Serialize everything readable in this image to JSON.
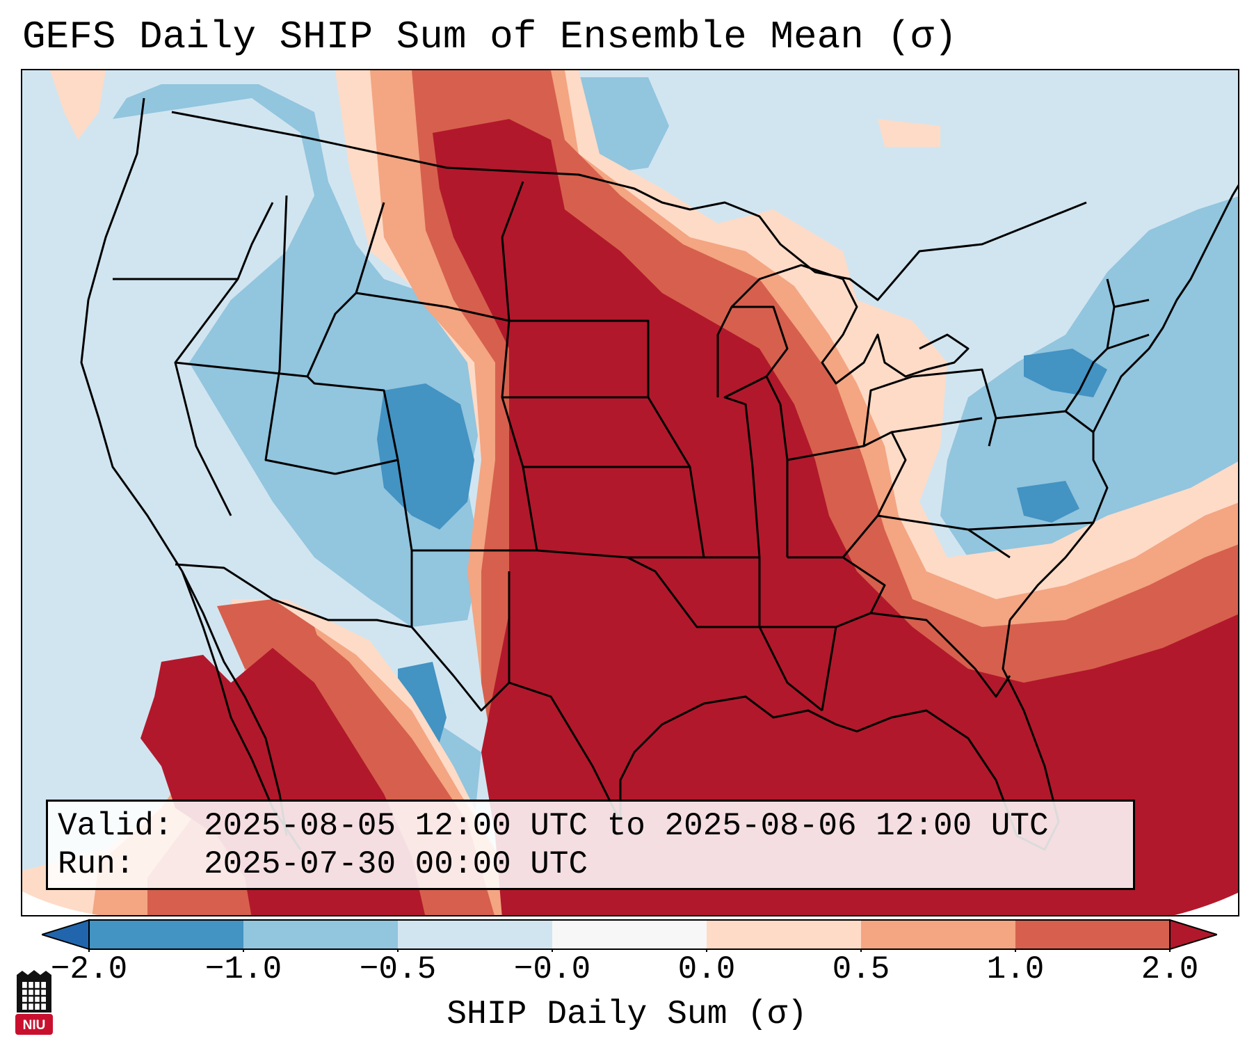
{
  "title": "GEFS Daily SHIP Sum of Ensemble Mean (σ)",
  "info": {
    "valid_label": "Valid:",
    "valid_value": "2025-08-05 12:00 UTC to 2025-08-06 12:00 UTC",
    "run_label": "Run:",
    "run_value": "2025-07-30 00:00 UTC"
  },
  "colorbar": {
    "title": "SHIP Daily Sum (σ)",
    "tick_labels": [
      "−2.0",
      "−1.0",
      "−0.5",
      "−0.0",
      "0.0",
      "0.5",
      "1.0",
      "2.0"
    ],
    "bins": [
      {
        "range": "below -2.0",
        "color": "#2166ac"
      },
      {
        "range": "-2.0 to -1.0",
        "color": "#4393c3"
      },
      {
        "range": "-1.0 to -0.5",
        "color": "#92c5de"
      },
      {
        "range": "-0.5 to -0.0",
        "color": "#d1e5f0"
      },
      {
        "range": "-0.0 to 0.0",
        "color": "#f7f7f7"
      },
      {
        "range": "0.0 to 0.5",
        "color": "#fddbc7"
      },
      {
        "range": "0.5 to 1.0",
        "color": "#f4a582"
      },
      {
        "range": "1.0 to 2.0",
        "color": "#d6604d"
      },
      {
        "range": "above 2.0",
        "color": "#b2182b"
      }
    ]
  },
  "map": {
    "region": "Contiguous United States, southern Canada, northern Mexico",
    "colors": {
      "neg_extreme": "#2166ac",
      "neg_strong": "#4393c3",
      "neg_moderate": "#92c5de",
      "neg_weak": "#d1e5f0",
      "neutral": "#f7f7f7",
      "pos_weak": "#fddbc7",
      "pos_moderate": "#f4a582",
      "pos_strong": "#d6604d",
      "pos_extreme": "#b2182b"
    }
  },
  "logo": {
    "text": "NIU",
    "color": "#c8102e"
  }
}
